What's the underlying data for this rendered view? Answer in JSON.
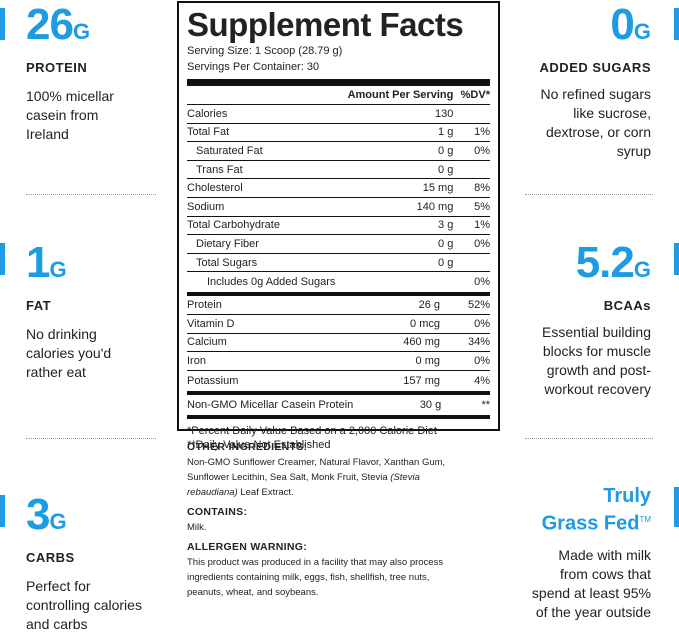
{
  "left": [
    {
      "num": "26",
      "unit": "G",
      "label": "PROTEIN",
      "desc": [
        "100% micellar",
        "casein from",
        "Ireland"
      ]
    },
    {
      "num": "1",
      "unit": "G",
      "label": "FAT",
      "desc": [
        "No drinking",
        "calories you'd",
        "rather eat"
      ]
    },
    {
      "num": "3",
      "unit": "G",
      "label": "CARBS",
      "desc": [
        "Perfect for",
        "controlling calories",
        "and carbs"
      ]
    }
  ],
  "right": [
    {
      "num": "0",
      "unit": "G",
      "label": "ADDED SUGARS",
      "desc": [
        "No refined sugars",
        "like sucrose,",
        "dextrose, or corn",
        "syrup"
      ]
    },
    {
      "num": "5.2",
      "unit": "G",
      "label": "BCAAs",
      "desc": [
        "Essential building",
        "blocks for muscle",
        "growth and post-",
        "workout recovery"
      ]
    },
    {
      "title1": "Truly",
      "title2": "Grass Fed",
      "tm": "TM",
      "desc": [
        "Made with milk",
        "from cows that",
        "spend at least 95%",
        "of the year outside"
      ]
    }
  ],
  "facts": {
    "title": "Supplement Facts",
    "serving_size": "Serving Size: 1 Scoop (28.79 g)",
    "servings": "Servings Per Container: 30",
    "hdr_amount": "Amount Per Serving",
    "hdr_dv": "%DV*",
    "rows": [
      {
        "n": "Calories",
        "a": "130",
        "d": "",
        "lvl": 0
      },
      {
        "n": "Total Fat",
        "a": "1 g",
        "d": "1%",
        "lvl": 0
      },
      {
        "n": "Saturated Fat",
        "a": "0 g",
        "d": "0%",
        "lvl": 1
      },
      {
        "n": "Trans Fat",
        "a": "0 g",
        "d": "",
        "lvl": 1
      },
      {
        "n": "Cholesterol",
        "a": "15 mg",
        "d": "8%",
        "lvl": 0
      },
      {
        "n": "Sodium",
        "a": "140 mg",
        "d": "5%",
        "lvl": 0
      },
      {
        "n": "Total Carbohydrate",
        "a": "3 g",
        "d": "1%",
        "lvl": 0
      },
      {
        "n": "Dietary Fiber",
        "a": "0 g",
        "d": "0%",
        "lvl": 1
      },
      {
        "n": "Total Sugars",
        "a": "0 g",
        "d": "",
        "lvl": 1
      },
      {
        "n": "Includes 0g Added Sugars",
        "a": "",
        "d": "0%",
        "lvl": 2
      }
    ],
    "rows2": [
      {
        "n": "Protein",
        "a": "26 g",
        "d": "52%"
      },
      {
        "n": "Vitamin D",
        "a": "0 mcg",
        "d": "0%"
      },
      {
        "n": "Calcium",
        "a": "460 mg",
        "d": "34%"
      },
      {
        "n": "Iron",
        "a": "0 mg",
        "d": "0%"
      },
      {
        "n": "Potassium",
        "a": "157 mg",
        "d": "4%"
      }
    ],
    "rows3": [
      {
        "n": "Non-GMO Micellar Casein Protein",
        "a": "30 g",
        "d": "**"
      }
    ],
    "foot1": "*Percent Daily Value Based on a 2,000 Calorie Diet",
    "foot2": "**Daily Value Not Established"
  },
  "ingredients": {
    "other_h": "OTHER INGREDIENTS:",
    "other_1": "Non-GMO Sunflower Creamer, Natural Flavor, Xanthan Gum,",
    "other_2": "Sunflower Lecithin, Sea Salt, Monk Fruit, Stevia ",
    "other_it1": "(Stevia",
    "other_it2": "rebaudiana)",
    "other_3": " Leaf Extract.",
    "contains_h": "CONTAINS:",
    "contains": "Milk.",
    "allergen_h": "ALLERGEN WARNING:",
    "allergen": [
      "This product was produced in a facility that may also process",
      "ingredients containing milk, eggs, fish, shellfish, tree nuts,",
      "peanuts, wheat, and soybeans."
    ]
  },
  "colors": {
    "accent": "#1d9be3",
    "text": "#222222"
  }
}
